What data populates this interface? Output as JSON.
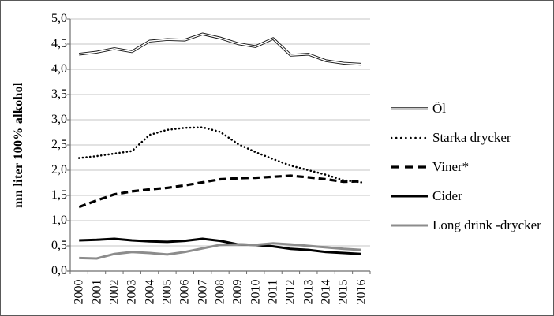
{
  "figure": {
    "background": "#ffffff",
    "border_color": "#595959",
    "grid_color": "#c6c6c6",
    "axis_color": "#6e6e6e"
  },
  "y_axis": {
    "title": "mn liter 100% alkohol",
    "tick_labels": [
      "5,0",
      "4,5",
      "4,0",
      "3,5",
      "3,0",
      "2,5",
      "2,0",
      "1,5",
      "1,0",
      "0,5",
      "0,0"
    ],
    "min": 0,
    "max": 5,
    "step": 0.5
  },
  "x_axis": {
    "labels": [
      "2000",
      "2001",
      "2002",
      "2003",
      "2004",
      "2005",
      "2006",
      "2007",
      "2008",
      "2009",
      "2010",
      "2011",
      "2012",
      "2013",
      "2014",
      "2015",
      "2016"
    ]
  },
  "chart_data": {
    "type": "line",
    "title": "",
    "xlabel": "",
    "ylabel": "mn liter 100% alkohol",
    "ylim": [
      0,
      5
    ],
    "grid": true,
    "legend_position": "right",
    "categories": [
      "2000",
      "2001",
      "2002",
      "2003",
      "2004",
      "2005",
      "2006",
      "2007",
      "2008",
      "2009",
      "2010",
      "2011",
      "2012",
      "2013",
      "2014",
      "2015",
      "2016"
    ],
    "series": [
      {
        "name": "Öl",
        "style": "double",
        "color": "#1a1a1a",
        "values": [
          4.3,
          4.34,
          4.41,
          4.35,
          4.56,
          4.59,
          4.58,
          4.7,
          4.62,
          4.51,
          4.45,
          4.61,
          4.28,
          4.3,
          4.17,
          4.12,
          4.1
        ]
      },
      {
        "name": "Starka drycker",
        "style": "dotted",
        "color": "#000000",
        "values": [
          2.24,
          2.28,
          2.33,
          2.38,
          2.7,
          2.8,
          2.84,
          2.85,
          2.76,
          2.52,
          2.36,
          2.22,
          2.09,
          2.0,
          1.91,
          1.8,
          1.76
        ]
      },
      {
        "name": "Viner*",
        "style": "dashed",
        "color": "#000000",
        "values": [
          1.27,
          1.4,
          1.52,
          1.58,
          1.62,
          1.65,
          1.7,
          1.76,
          1.82,
          1.84,
          1.85,
          1.87,
          1.89,
          1.86,
          1.82,
          1.77,
          1.78
        ]
      },
      {
        "name": "Cider",
        "style": "solid",
        "color": "#000000",
        "values": [
          0.61,
          0.62,
          0.64,
          0.61,
          0.59,
          0.58,
          0.6,
          0.64,
          0.6,
          0.53,
          0.52,
          0.49,
          0.44,
          0.42,
          0.38,
          0.36,
          0.34
        ]
      },
      {
        "name": "Long drink -drycker",
        "style": "solid",
        "color": "#8c8c8c",
        "values": [
          0.26,
          0.25,
          0.34,
          0.38,
          0.36,
          0.33,
          0.38,
          0.45,
          0.52,
          0.53,
          0.52,
          0.55,
          0.53,
          0.5,
          0.47,
          0.44,
          0.42
        ]
      }
    ]
  }
}
